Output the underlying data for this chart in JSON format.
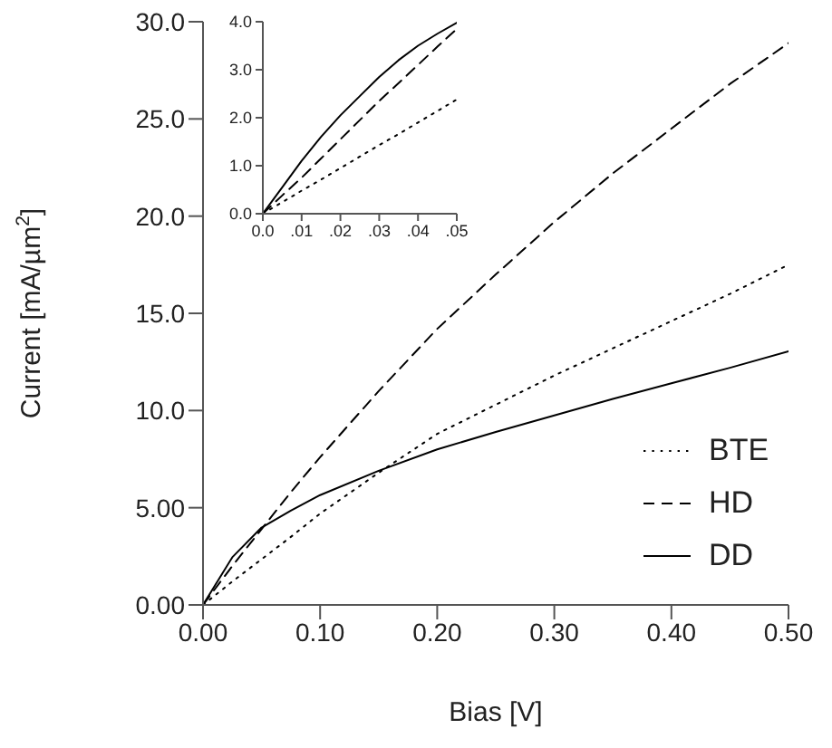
{
  "chart_data": [
    {
      "type": "line",
      "xlabel": "Bias  [V]",
      "ylabel": "Current  [mA/µm$^{2}$]",
      "x": [
        0,
        0.025,
        0.05,
        0.075,
        0.1,
        0.15,
        0.2,
        0.25,
        0.3,
        0.35,
        0.4,
        0.45,
        0.5
      ],
      "series": [
        {
          "name": "BTE",
          "color": "#000000",
          "line_style": "dotted",
          "values": [
            0,
            1.2,
            2.35,
            3.5,
            4.7,
            6.8,
            8.8,
            10.3,
            11.8,
            13.2,
            14.6,
            16.0,
            17.5
          ]
        },
        {
          "name": "HD",
          "color": "#000000",
          "line_style": "dashed",
          "values": [
            0,
            2.0,
            3.9,
            5.8,
            7.6,
            11.0,
            14.2,
            17.0,
            19.7,
            22.2,
            24.5,
            26.8,
            28.9
          ]
        },
        {
          "name": "DD",
          "color": "#000000",
          "line_style": "solid",
          "values": [
            0,
            2.45,
            3.98,
            4.85,
            5.65,
            6.9,
            8.0,
            8.9,
            9.75,
            10.6,
            11.4,
            12.2,
            13.05
          ]
        }
      ],
      "xlim": [
        0,
        0.5
      ],
      "xticks": [
        {
          "value": 0,
          "label": "0.00"
        },
        {
          "value": 0.1,
          "label": "0.10"
        },
        {
          "value": 0.2,
          "label": "0.20"
        },
        {
          "value": 0.3,
          "label": "0.30"
        },
        {
          "value": 0.4,
          "label": "0.40"
        },
        {
          "value": 0.5,
          "label": "0.50"
        }
      ],
      "ylim": [
        0,
        30
      ],
      "yticks": [
        {
          "value": 0,
          "label": "0.00"
        },
        {
          "value": 5,
          "label": "5.00"
        },
        {
          "value": 10,
          "label": "10.0"
        },
        {
          "value": 15,
          "label": "15.0"
        },
        {
          "value": 20,
          "label": "20.0"
        },
        {
          "value": 25,
          "label": "25.0"
        },
        {
          "value": 30,
          "label": "30.0"
        }
      ],
      "grid": false,
      "legend": "bottom right",
      "marker": "none"
    },
    {
      "type": "line",
      "x": [
        0,
        0.005,
        0.01,
        0.015,
        0.02,
        0.025,
        0.03,
        0.035,
        0.04,
        0.045,
        0.05
      ],
      "series": [
        {
          "color": "#000000",
          "line_style": "dotted",
          "values": [
            0,
            0.24,
            0.48,
            0.71,
            0.95,
            1.19,
            1.43,
            1.66,
            1.9,
            2.14,
            2.38
          ]
        },
        {
          "color": "#000000",
          "line_style": "dashed",
          "values": [
            0,
            0.38,
            0.75,
            1.15,
            1.55,
            1.95,
            2.35,
            2.72,
            3.1,
            3.48,
            3.85
          ]
        },
        {
          "color": "#000000",
          "line_style": "solid",
          "values": [
            0,
            0.55,
            1.1,
            1.6,
            2.05,
            2.45,
            2.85,
            3.2,
            3.5,
            3.75,
            3.98
          ]
        }
      ],
      "xlim": [
        0,
        0.05
      ],
      "xticks": [
        {
          "value": 0,
          "label": "0.0"
        },
        {
          "value": 0.01,
          "label": ".01"
        },
        {
          "value": 0.02,
          "label": ".02"
        },
        {
          "value": 0.03,
          "label": ".03"
        },
        {
          "value": 0.04,
          "label": ".04"
        },
        {
          "value": 0.05,
          "label": ".05"
        }
      ],
      "ylim": [
        0,
        4
      ],
      "yticks": [
        {
          "value": 0,
          "label": "0.0"
        },
        {
          "value": 1,
          "label": "1.0"
        },
        {
          "value": 2,
          "label": "2.0"
        },
        {
          "value": 3,
          "label": "3.0"
        },
        {
          "value": 4,
          "label": "4.0"
        }
      ],
      "grid": false,
      "legend": false,
      "marker": "none"
    }
  ]
}
